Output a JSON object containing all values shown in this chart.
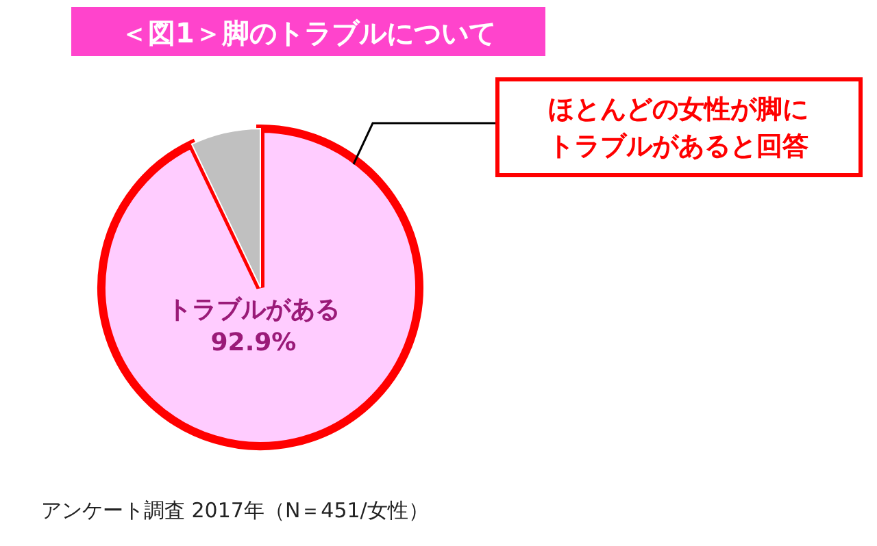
{
  "chart_data": {
    "type": "pie",
    "title": "＜図1＞脚のトラブルについて",
    "categories": [
      "トラブルがある",
      null
    ],
    "values": [
      92.9,
      7.1
    ],
    "value_labels": [
      "92.9%",
      null
    ],
    "colors": [
      "#ffccff",
      "#c0c0c0"
    ],
    "annotations": [
      "ほとんどの女性が脚にトラブルがあると回答",
      "アンケート調査 2017年（N＝451/女性）"
    ]
  }
}
